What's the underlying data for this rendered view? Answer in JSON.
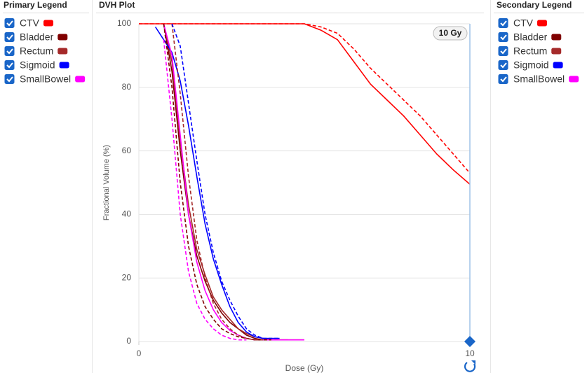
{
  "primary_legend": {
    "title": "Primary Legend",
    "checked": [
      true,
      true,
      true,
      true,
      true
    ]
  },
  "secondary_legend": {
    "title": "Secondary Legend",
    "checked": [
      true,
      true,
      true,
      true,
      true
    ]
  },
  "plot_panel": {
    "title": "DVH Plot"
  },
  "chart_data": {
    "type": "line",
    "xlabel": "Dose (Gy)",
    "ylabel": "Fractional Volume (%)",
    "x": [
      0,
      0.25,
      0.5,
      0.75,
      1,
      1.25,
      1.5,
      1.75,
      2,
      2.25,
      2.5,
      2.75,
      3,
      3.25,
      3.5,
      3.75,
      4,
      4.25,
      4.5,
      4.75,
      5,
      5.5,
      6,
      6.5,
      7,
      7.5,
      8,
      8.5,
      9,
      9.5,
      10
    ],
    "xlim": [
      0,
      10
    ],
    "xticks": [
      0,
      10
    ],
    "ylim": [
      0,
      100
    ],
    "yticks": [
      0,
      20,
      40,
      60,
      80,
      100
    ],
    "grid": true,
    "cursor": {
      "value": 10,
      "label": "10 Gy"
    },
    "primary_series": [
      {
        "name": "CTV",
        "color": "#ff0000",
        "values": [
          100,
          100,
          100,
          100,
          100,
          100,
          100,
          100,
          100,
          100,
          100,
          100,
          100,
          100,
          100,
          100,
          100,
          100,
          100,
          100,
          100,
          98,
          95,
          88,
          81,
          76,
          71,
          65,
          59,
          54,
          49.5
        ]
      },
      {
        "name": "Bladder",
        "color": "#800000",
        "values": [
          null,
          null,
          null,
          100,
          85,
          60,
          40,
          27,
          19,
          13,
          9,
          6,
          4,
          2,
          1,
          0.5,
          0.5,
          0.5,
          0.5,
          0.5,
          0.5,
          null,
          null,
          null,
          null,
          null,
          null,
          null,
          null,
          null,
          null
        ]
      },
      {
        "name": "Rectum",
        "color": "#a52a2a",
        "values": [
          null,
          null,
          null,
          100,
          88,
          63,
          43,
          29,
          21,
          14,
          10,
          7,
          4,
          2.5,
          1.5,
          1,
          0.5,
          0.5,
          0.5,
          null,
          null,
          null,
          null,
          null,
          null,
          null,
          null,
          null,
          null,
          null,
          null
        ]
      },
      {
        "name": "Sigmoid",
        "color": "#0000ff",
        "values": [
          null,
          null,
          99,
          95,
          91,
          82,
          68,
          52,
          37,
          26,
          18,
          11,
          6,
          3,
          1.5,
          1,
          1,
          1,
          null,
          null,
          null,
          null,
          null,
          null,
          null,
          null,
          null,
          null,
          null,
          null,
          null
        ]
      },
      {
        "name": "SmallBowel",
        "color": "#ff00ff",
        "values": [
          null,
          null,
          null,
          100,
          90,
          65,
          40,
          25,
          16,
          10,
          6,
          3.5,
          2,
          1,
          0.5,
          0.5,
          0.5,
          0.5,
          0.5,
          0.5,
          0.5,
          null,
          null,
          null,
          null,
          null,
          null,
          null,
          null,
          null,
          null
        ]
      }
    ],
    "secondary_series": [
      {
        "name": "CTV",
        "color": "#ff0000",
        "values": [
          100,
          100,
          100,
          100,
          100,
          100,
          100,
          100,
          100,
          100,
          100,
          100,
          100,
          100,
          100,
          100,
          100,
          100,
          100,
          100,
          100,
          99,
          97,
          92,
          86,
          81,
          76,
          71,
          65,
          59,
          53
        ]
      },
      {
        "name": "Bladder",
        "color": "#800000",
        "values": [
          null,
          null,
          null,
          100,
          80,
          50,
          30,
          18,
          11,
          7,
          4,
          2.5,
          1.5,
          1,
          0.5,
          0.5,
          0.5,
          null,
          null,
          null,
          null,
          null,
          null,
          null,
          null,
          null,
          null,
          null,
          null,
          null,
          null
        ]
      },
      {
        "name": "Rectum",
        "color": "#a52a2a",
        "values": [
          null,
          null,
          null,
          null,
          100,
          78,
          52,
          32,
          20,
          12,
          7,
          4,
          2,
          1,
          0.5,
          0.5,
          null,
          null,
          null,
          null,
          null,
          null,
          null,
          null,
          null,
          null,
          null,
          null,
          null,
          null,
          null
        ]
      },
      {
        "name": "Sigmoid",
        "color": "#0000ff",
        "values": [
          null,
          null,
          null,
          null,
          100,
          93,
          75,
          57,
          40,
          28,
          19,
          13,
          8,
          4,
          2,
          1,
          1,
          1,
          null,
          null,
          null,
          null,
          null,
          null,
          null,
          null,
          null,
          null,
          null,
          null,
          null
        ]
      },
      {
        "name": "SmallBowel",
        "color": "#ff00ff",
        "values": [
          null,
          null,
          null,
          95,
          70,
          40,
          22,
          12,
          7,
          4,
          2,
          1,
          0.5,
          0.5,
          null,
          null,
          null,
          null,
          null,
          null,
          null,
          null,
          null,
          null,
          null,
          null,
          null,
          null,
          null,
          null,
          null
        ]
      }
    ]
  }
}
